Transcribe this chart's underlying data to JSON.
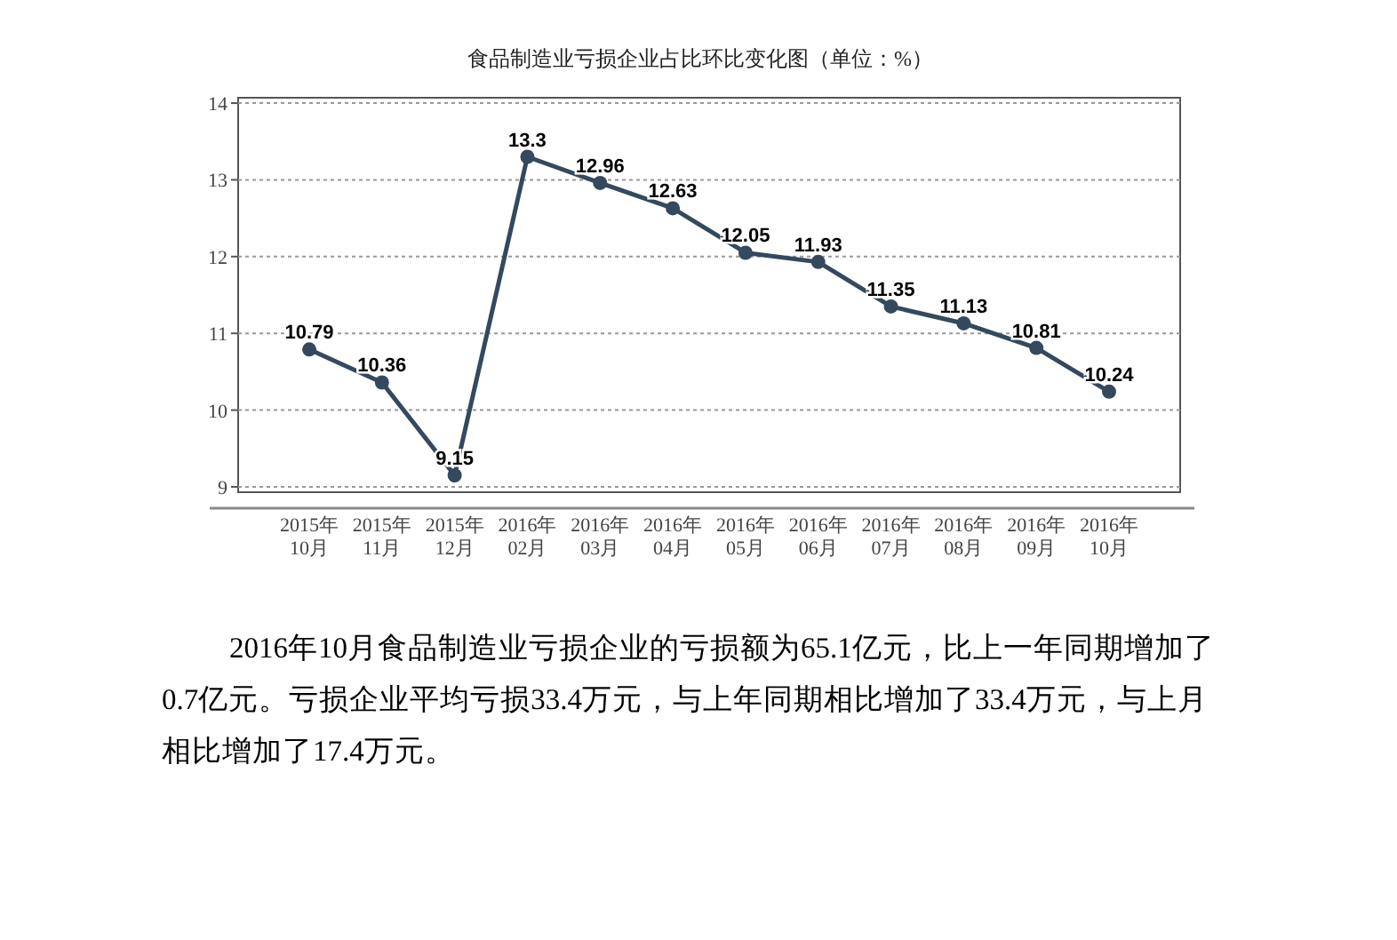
{
  "chart_data": {
    "type": "line",
    "title": "食品制造业亏损企业占比环比变化图（单位：%）",
    "categories": [
      "2015年\n10月",
      "2015年\n11月",
      "2015年\n12月",
      "2016年\n02月",
      "2016年\n03月",
      "2016年\n04月",
      "2016年\n05月",
      "2016年\n06月",
      "2016年\n07月",
      "2016年\n08月",
      "2016年\n09月",
      "2016年\n10月"
    ],
    "series": [
      {
        "color": "#34495e",
        "values": [
          10.79,
          10.36,
          9.15,
          13.3,
          12.96,
          12.63,
          12.05,
          11.93,
          11.35,
          11.13,
          10.81,
          10.24
        ]
      }
    ],
    "ylim": [
      8.93,
      14.07
    ],
    "yticks": [
      9,
      10,
      11,
      12,
      13,
      14
    ],
    "grid": "y",
    "marker": "circle",
    "line_style": "solid",
    "data_labels": true,
    "annotations": [
      "2016年10月食品制造业亏损企业的亏损额为65.1亿元，比上一年同期增加了0.7亿元。亏损企业平均亏损33.4万元，与上年同期相比增加了33.4万元，与上月相比增加了17.4万元。"
    ]
  }
}
